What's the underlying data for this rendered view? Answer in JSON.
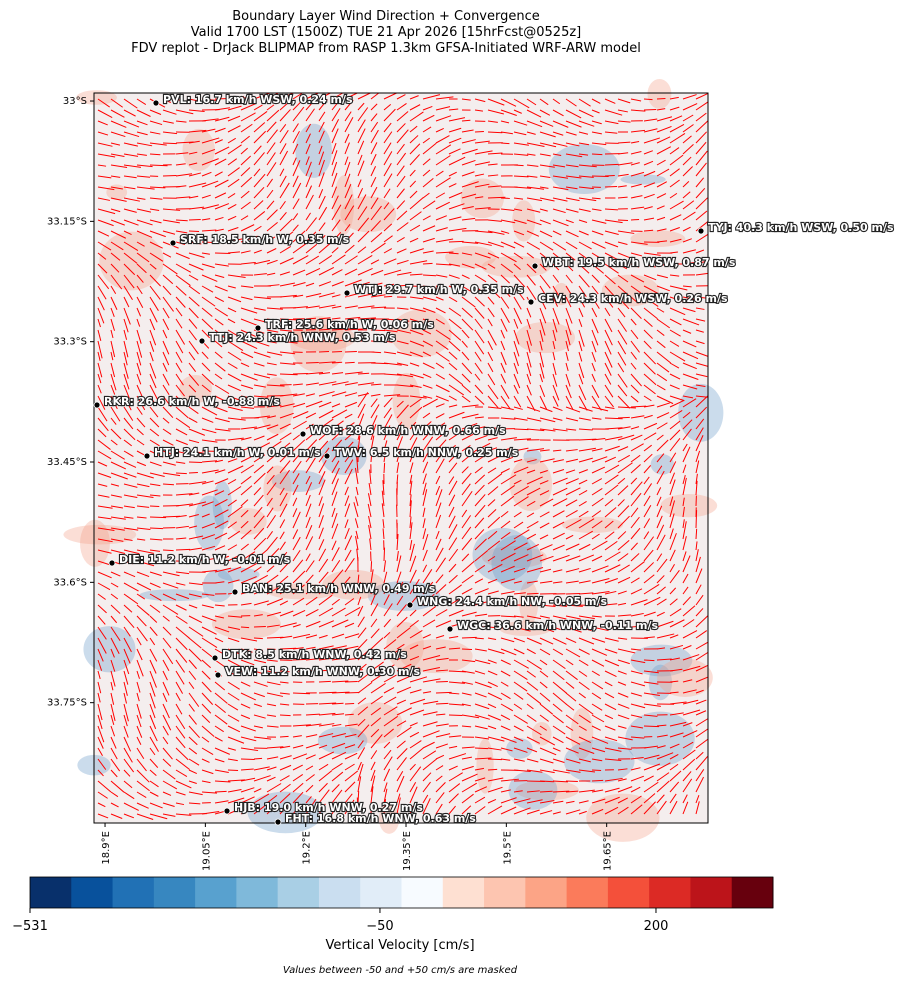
{
  "chart_data": {
    "type": "map",
    "title": [
      "Boundary Layer Wind Direction + Convergence",
      "Valid 1700 LST (1500Z) TUE 21 Apr 2026 [15hrFcst@0525z]",
      "FDV replot - DrJack BLIPMAP from RASP 1.3km GFSA-Initiated WRF-ARW model"
    ],
    "xlim": [
      18.8835,
      19.8015
    ],
    "ylim": [
      -33.9,
      -32.99
    ],
    "xticks": [
      {
        "value": 18.9,
        "label": "18.9°E"
      },
      {
        "value": 19.05,
        "label": "19.05°E"
      },
      {
        "value": 19.2,
        "label": "19.2°E"
      },
      {
        "value": 19.35,
        "label": "19.35°E"
      },
      {
        "value": 19.5,
        "label": "19.5°E"
      },
      {
        "value": 19.65,
        "label": "19.65°E"
      }
    ],
    "yticks": [
      {
        "value": -33,
        "label": "33°S"
      },
      {
        "value": -33.15,
        "label": "33.15°S"
      },
      {
        "value": -33.3,
        "label": "33.3°S"
      },
      {
        "value": -33.45,
        "label": "33.45°S"
      },
      {
        "value": -33.6,
        "label": "33.6°S"
      },
      {
        "value": -33.75,
        "label": "33.75°S"
      }
    ],
    "stations": [
      "PVL: 16.7 km/h WSW, 0.24 m/s",
      "SRF: 18.5 km/h W, 0.35 m/s",
      "WBT: 19.5 km/h WSW, 0.87 m/s",
      "TYJ: 40.3 km/h WSW, 0.50 m/s",
      "WTJ: 29.7 km/h W, 0.35 m/s",
      "CEV: 24.3 km/h WSW, 0.26 m/s",
      "TRF: 25.6 km/h W, 0.06 m/s",
      "TTJ: 24.3 km/h WNW, 0.53 m/s",
      "RKR: 26.6 km/h W, -0.88 m/s",
      "WOF: 28.6 km/h WNW, 0.66 m/s",
      "HTJ: 24.1 km/h W, 0.01 m/s",
      "TWV: 6.5 km/h NNW, 0.25 m/s",
      "DIE: 11.2 km/h W, -0.01 m/s",
      "BAN: 25.1 km/h WNW, 0.49 m/s",
      "WNG: 24.4 km/h NW, -0.05 m/s",
      "WGC: 36.6 km/h WNW, -0.11 m/s",
      "DTK: 8.5 km/h WNW, 0.42 m/s",
      "VEW: 11.2 km/h WNW, 0.30 m/s",
      "HJB: 19.0 km/h WNW, 0.27 m/s",
      "FHT: 16.8 km/h WNW, 0.63 m/s"
    ],
    "colorbar": {
      "label": "Vertical Velocity [cm/s]",
      "colors": [
        "#08306b",
        "#08519c",
        "#2171b5",
        "#3787c0",
        "#58a1cf",
        "#7fb9da",
        "#a9cfe5",
        "#cadef0",
        "#e1edf8",
        "#f7fbff",
        "#fee0d2",
        "#fdc5b0",
        "#fca486",
        "#fb7b5b",
        "#f4503a",
        "#dc2a25",
        "#bc141a",
        "#67000d"
      ],
      "ticks": [
        {
          "value": -531,
          "label": "−531"
        },
        {
          "value": -50,
          "label": "−50"
        },
        200
      ]
    },
    "note": "Values between -50 and +50 cm/s are masked",
    "vector_color": "red"
  }
}
